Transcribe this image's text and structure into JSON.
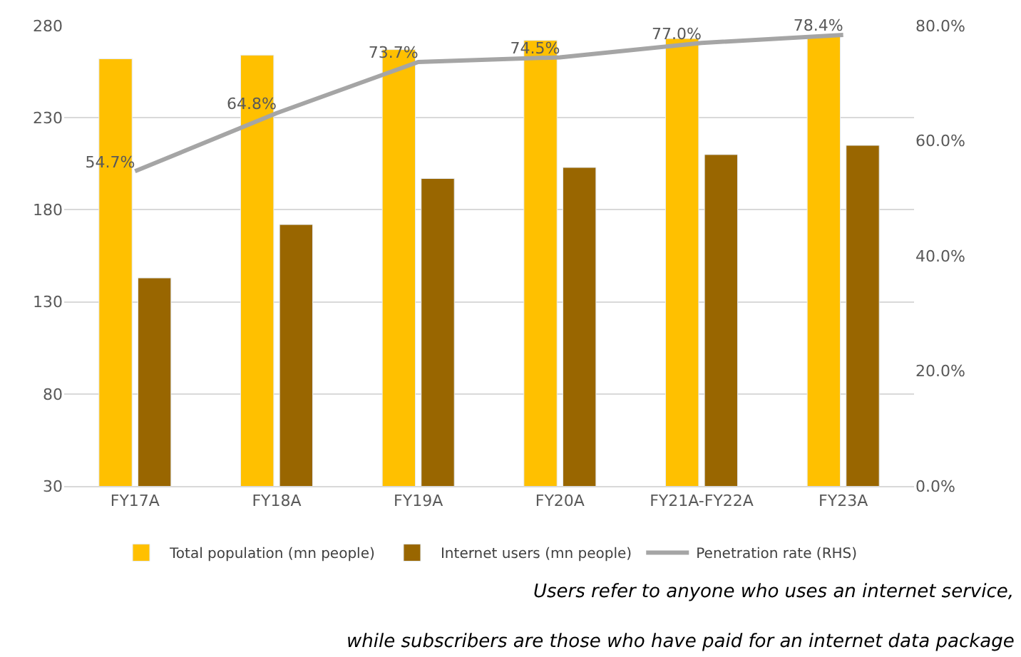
{
  "chart_data": {
    "type": "bar",
    "categories": [
      "FY17A",
      "FY18A",
      "FY19A",
      "FY20A",
      "FY21A-FY22A",
      "FY23A"
    ],
    "series": [
      {
        "name": "Total population (mn people)",
        "color": "#ffc000",
        "values": [
          262,
          264,
          267,
          272,
          273,
          274
        ]
      },
      {
        "name": "Internet users (mn people)",
        "color": "#996600",
        "values": [
          143,
          172,
          197,
          203,
          210,
          215
        ]
      },
      {
        "name": "Penetration rate (RHS)",
        "type": "line",
        "axis": "y2",
        "color": "#a5a5a5",
        "marker": "none",
        "line_style": "solid",
        "values": [
          54.7,
          64.8,
          73.7,
          74.5,
          77.0,
          78.4
        ],
        "value_labels": [
          "54.7%",
          "64.8%",
          "73.7%",
          "74.5%",
          "77.0%",
          "78.4%"
        ]
      }
    ],
    "ylim": [
      30,
      280
    ],
    "yticks": [
      30,
      80,
      130,
      180,
      230,
      280
    ],
    "y2lim": [
      0,
      80
    ],
    "y2ticks": [
      {
        "value": 0,
        "label": "0.0%"
      },
      {
        "value": 20,
        "label": "20.0%"
      },
      {
        "value": 40,
        "label": "40.0%"
      },
      {
        "value": 60,
        "label": "60.0%"
      },
      {
        "value": 80,
        "label": "80.0%"
      }
    ],
    "grid": "y",
    "legend": "bottom",
    "annotations": [
      "Users refer to anyone who uses an internet service,",
      "while subscribers are those who have paid for an internet data package"
    ]
  }
}
